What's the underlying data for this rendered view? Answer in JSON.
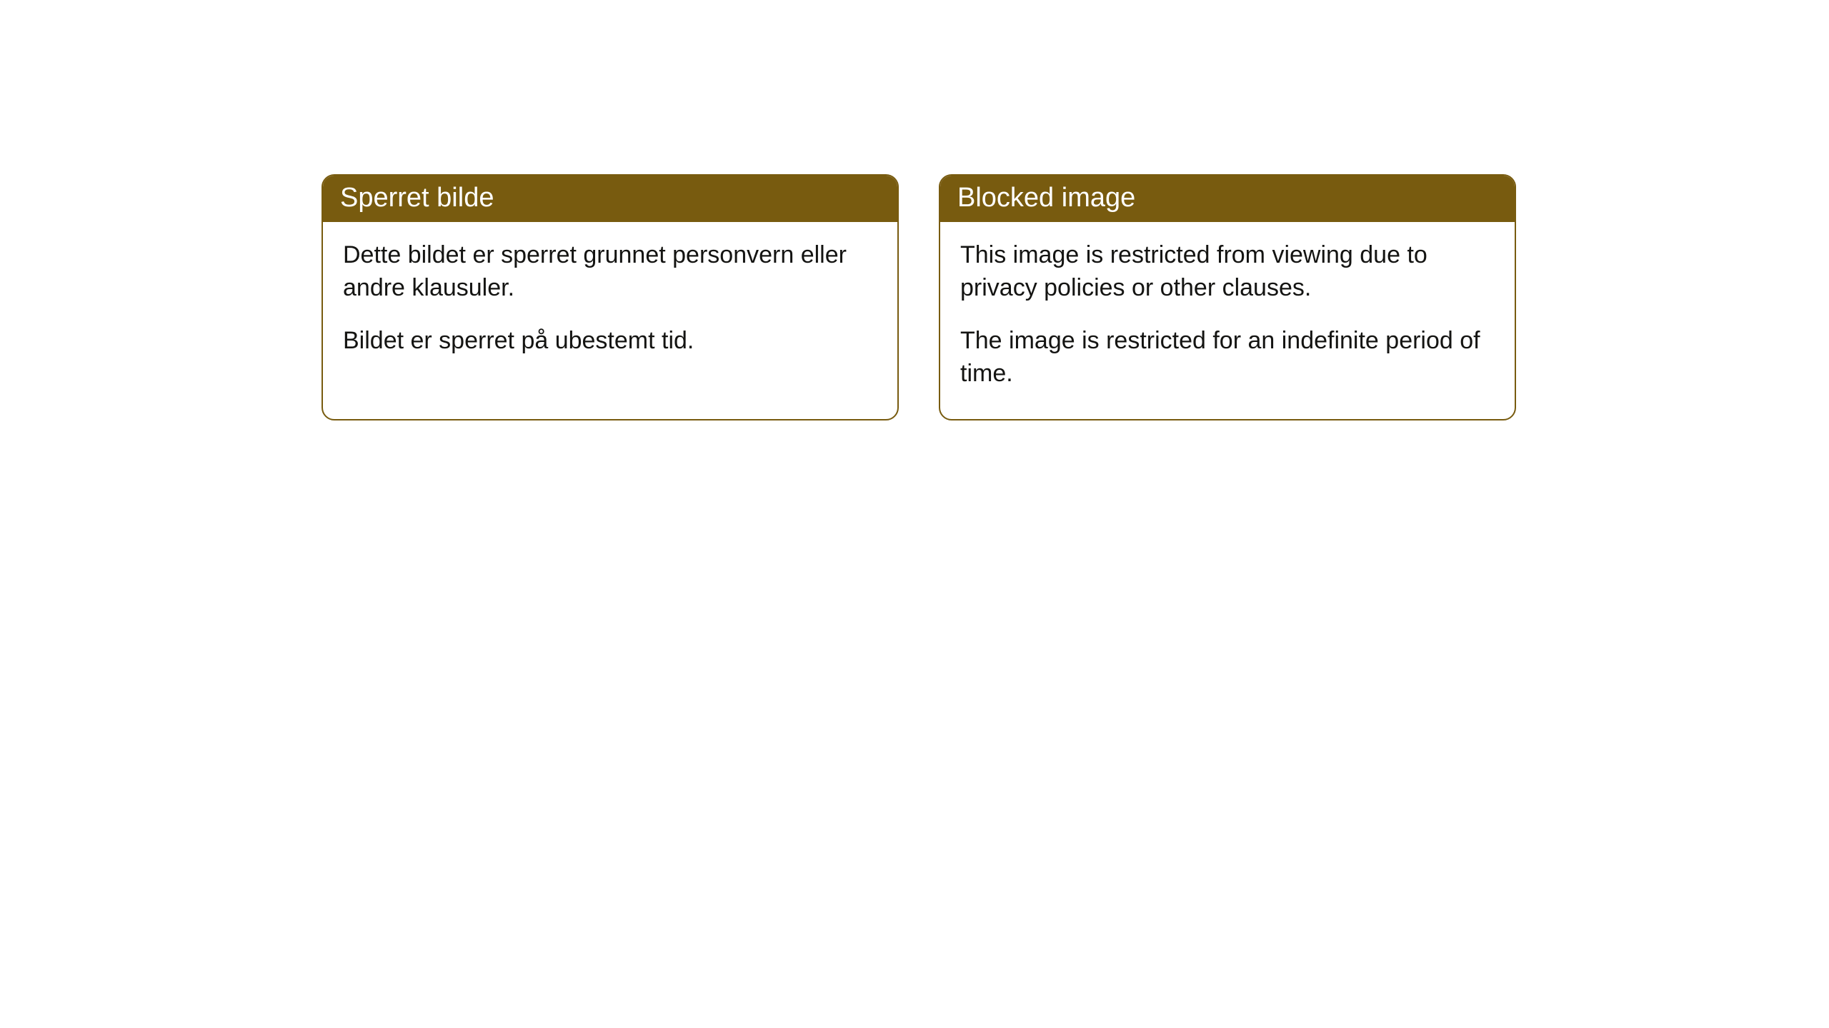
{
  "notices": [
    {
      "title": "Sperret bilde",
      "paragraph1": "Dette bildet er sperret grunnet personvern eller andre klausuler.",
      "paragraph2": "Bildet er sperret på ubestemt tid."
    },
    {
      "title": "Blocked image",
      "paragraph1": "This image is restricted from viewing due to privacy policies or other clauses.",
      "paragraph2": "The image is restricted for an indefinite period of time."
    }
  ],
  "styling": {
    "header_background_color": "#785b0f",
    "header_text_color": "#ffffff",
    "border_color": "#785b0f",
    "body_background_color": "#ffffff",
    "body_text_color": "#141412",
    "border_radius": "18px",
    "header_font_size": "38px",
    "body_font_size": "34px"
  }
}
